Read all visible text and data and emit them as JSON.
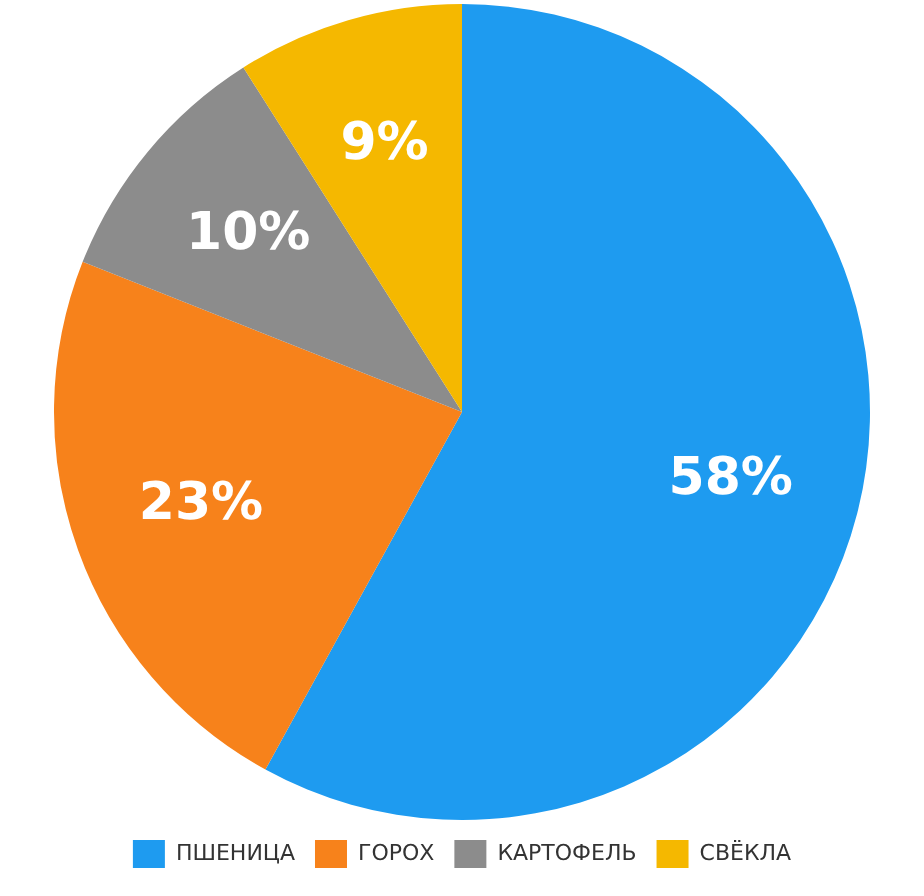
{
  "chart_data": {
    "type": "pie",
    "categories": [
      "ПШЕНИЦА",
      "ГОРОХ",
      "КАРТОФЕЛЬ",
      "СВЁКЛА"
    ],
    "values": [
      58,
      23,
      10,
      9
    ],
    "colors": [
      "#1e9bf0",
      "#f7821b",
      "#8c8c8c",
      "#f5b800"
    ],
    "value_labels": [
      "58%",
      "23%",
      "10%",
      "9%"
    ],
    "legend": "bottom"
  }
}
